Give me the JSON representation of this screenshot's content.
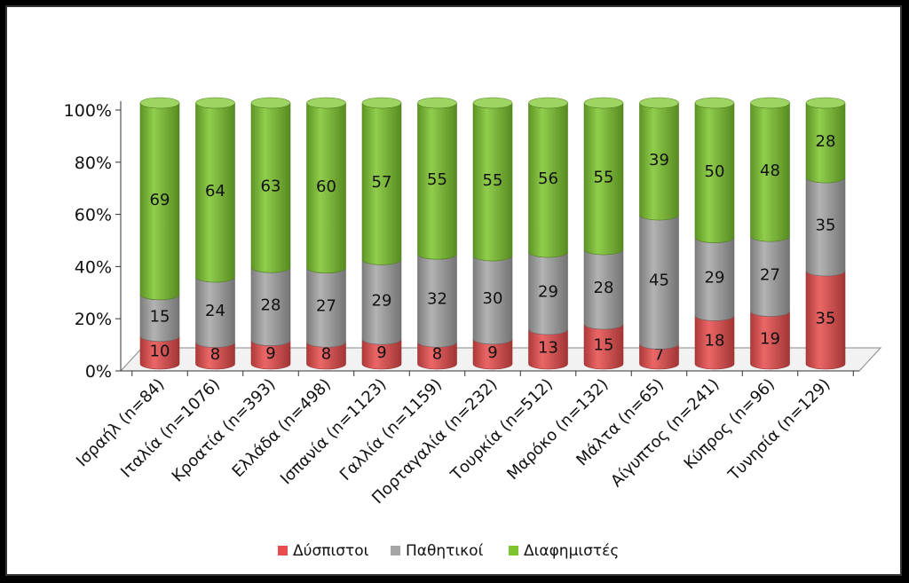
{
  "chart_data": {
    "type": "bar",
    "stacked": true,
    "percent": true,
    "style": "3d-cylinder",
    "categories": [
      "Ισραήλ (n=84)",
      "Ιταλία (n=1076)",
      "Κροατία (n=393)",
      "Ελλάδα (n=498)",
      "Ισπανία (n=1123)",
      "Γαλλία (n=1159)",
      "Πορταγαλία (n=232)",
      "Τουρκία (n=512)",
      "Μαρόκο (n=132)",
      "Μάλτα (n=65)",
      "Αίγυπτος (n=241)",
      "Κύπρος (n=96)",
      "Τυνησία (n=129)"
    ],
    "series": [
      {
        "name": "Δύσπιστοι",
        "color": "#e84c4c",
        "values": [
          10,
          8,
          9,
          8,
          9,
          8,
          9,
          13,
          15,
          7,
          18,
          19,
          35
        ]
      },
      {
        "name": "Παθητικοί",
        "color": "#a6a6a6",
        "values": [
          15,
          24,
          28,
          27,
          29,
          32,
          30,
          29,
          28,
          45,
          29,
          27,
          35
        ]
      },
      {
        "name": "Διαφημιστές",
        "color": "#7cc52e",
        "values": [
          69,
          64,
          63,
          60,
          57,
          55,
          55,
          56,
          55,
          39,
          50,
          48,
          28
        ]
      }
    ],
    "y_ticks": [
      "0%",
      "20%",
      "40%",
      "60%",
      "80%",
      "100%"
    ],
    "ylim": [
      0,
      100
    ],
    "title": "",
    "xlabel": "",
    "ylabel": "",
    "legend_position": "bottom",
    "grid": false
  }
}
